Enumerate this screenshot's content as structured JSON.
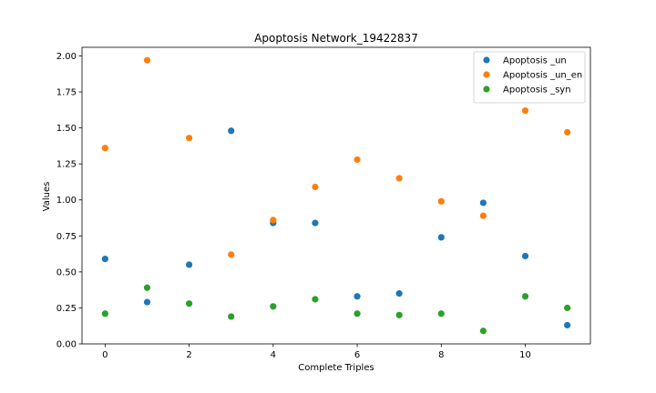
{
  "chart_data": {
    "type": "scatter",
    "title": "Apoptosis Network_19422837",
    "xlabel": "Complete Triples",
    "ylabel": "Values",
    "xlim": [
      -0.55,
      11.55
    ],
    "ylim": [
      0.0,
      2.06
    ],
    "xticks": [
      0,
      2,
      4,
      6,
      8,
      10
    ],
    "yticks": [
      0.0,
      0.25,
      0.5,
      0.75,
      1.0,
      1.25,
      1.5,
      1.75,
      2.0
    ],
    "ytick_labels": [
      "0.00",
      "0.25",
      "0.50",
      "0.75",
      "1.00",
      "1.25",
      "1.50",
      "1.75",
      "2.00"
    ],
    "grid": false,
    "legend_position": "top-right",
    "x": [
      0,
      1,
      2,
      3,
      4,
      5,
      6,
      7,
      8,
      9,
      10,
      11
    ],
    "series": [
      {
        "name": "Apoptosis _un",
        "color": "#1f77b4",
        "values": [
          0.59,
          0.29,
          0.55,
          1.48,
          0.84,
          0.84,
          0.33,
          0.35,
          0.74,
          0.98,
          0.61,
          0.13
        ]
      },
      {
        "name": "Apoptosis _un_en",
        "color": "#ff7f0e",
        "values": [
          1.36,
          1.97,
          1.43,
          0.62,
          0.86,
          1.09,
          1.28,
          1.15,
          0.99,
          0.89,
          1.62,
          1.47
        ]
      },
      {
        "name": "Apoptosis _syn",
        "color": "#2ca02c",
        "values": [
          0.21,
          0.39,
          0.28,
          0.19,
          0.26,
          0.31,
          0.21,
          0.2,
          0.21,
          0.09,
          0.33,
          0.25
        ]
      }
    ]
  }
}
